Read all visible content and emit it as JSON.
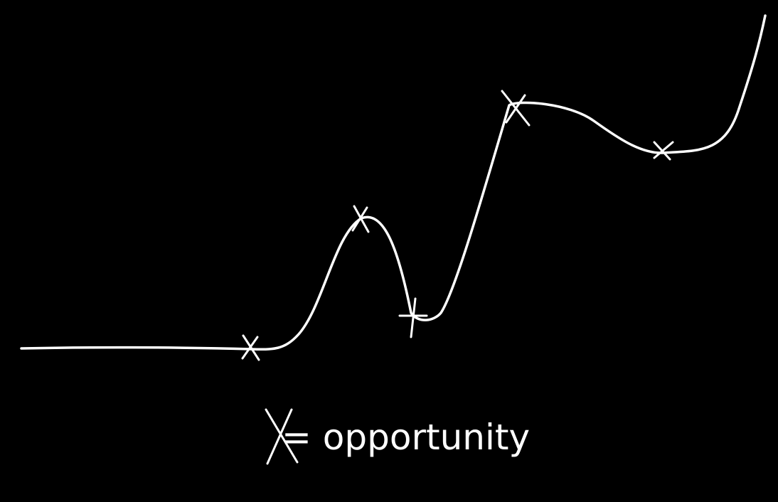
{
  "legend": {
    "symbol": "X",
    "text": "= opportunity"
  },
  "colors": {
    "background": "#000000",
    "stroke": "#ffffff"
  }
}
